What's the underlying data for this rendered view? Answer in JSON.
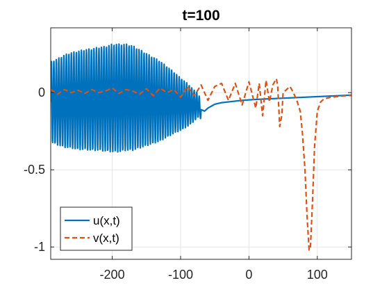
{
  "chart_data": {
    "type": "line",
    "title": "t=100",
    "xlabel": "",
    "ylabel": "",
    "xlim": [
      -290,
      150
    ],
    "ylim": [
      -1.08,
      0.42
    ],
    "xticks": [
      -200,
      -100,
      0,
      100
    ],
    "xtick_labels": [
      "-200",
      "-100",
      "0",
      "100"
    ],
    "yticks": [
      -1,
      -0.5,
      0
    ],
    "ytick_labels": [
      "-1",
      "-0.5",
      "0"
    ],
    "grid": true,
    "legend_position": "bottom-left",
    "colors": {
      "u": "#0072BD",
      "v": "#D95319",
      "grid": "#e6e6e6",
      "axes": "#262626"
    },
    "series": [
      {
        "name": "u(x,t)",
        "style": "solid",
        "x": [
          -290,
          -280,
          -270,
          -260,
          -250,
          -240,
          -230,
          -220,
          -210,
          -200,
          -190,
          -180,
          -170,
          -160,
          -150,
          -140,
          -130,
          -120,
          -110,
          -100,
          -90,
          -80,
          -75,
          -70,
          -65,
          -60,
          -50,
          -40,
          -30,
          -20,
          -10,
          0,
          10,
          20,
          30,
          40,
          50,
          60,
          70,
          80,
          90,
          100,
          110,
          120,
          130,
          140,
          150
        ],
        "values": [
          -0.06,
          -0.06,
          -0.055,
          -0.05,
          -0.05,
          -0.045,
          -0.045,
          -0.04,
          -0.04,
          -0.035,
          -0.035,
          -0.03,
          -0.035,
          -0.04,
          -0.045,
          -0.05,
          -0.055,
          -0.06,
          -0.065,
          -0.075,
          -0.08,
          -0.085,
          -0.08,
          -0.11,
          -0.12,
          -0.1,
          -0.075,
          -0.065,
          -0.06,
          -0.055,
          -0.05,
          -0.047,
          -0.044,
          -0.042,
          -0.04,
          -0.038,
          -0.036,
          -0.034,
          -0.032,
          -0.03,
          -0.028,
          -0.026,
          -0.024,
          -0.022,
          -0.02,
          -0.018,
          -0.016
        ],
        "oscillation": {
          "x_range": [
            -290,
            -70
          ],
          "envelope_x": [
            -290,
            -270,
            -250,
            -230,
            -210,
            -200,
            -190,
            -170,
            -150,
            -130,
            -110,
            -90,
            -70
          ],
          "envelope_amplitude": [
            0.26,
            0.3,
            0.32,
            0.33,
            0.34,
            0.35,
            0.35,
            0.34,
            0.3,
            0.26,
            0.2,
            0.14,
            0.06
          ],
          "cycles": 60
        }
      },
      {
        "name": "v(x,t)",
        "style": "dashed",
        "x": [
          -290,
          -280,
          -270,
          -260,
          -250,
          -240,
          -230,
          -220,
          -210,
          -200,
          -190,
          -180,
          -170,
          -160,
          -150,
          -140,
          -130,
          -120,
          -110,
          -100,
          -90,
          -80,
          -70,
          -60,
          -50,
          -40,
          -30,
          -20,
          -10,
          0,
          10,
          15,
          20,
          25,
          30,
          35,
          40,
          42,
          45,
          48,
          50,
          55,
          60,
          65,
          70,
          75,
          78,
          82,
          85,
          88,
          90,
          93,
          96,
          100,
          105,
          110,
          120,
          130,
          140,
          150
        ],
        "values": [
          0.02,
          -0.01,
          0.02,
          0.0,
          0.015,
          -0.005,
          0.02,
          0.0,
          0.01,
          0.03,
          -0.005,
          0.02,
          0.01,
          -0.01,
          0.025,
          -0.02,
          0.03,
          0.0,
          0.02,
          -0.03,
          0.04,
          -0.02,
          0.05,
          -0.05,
          0.04,
          0.06,
          -0.05,
          0.06,
          -0.08,
          0.07,
          -0.1,
          0.06,
          -0.15,
          0.08,
          -0.06,
          0.05,
          0.09,
          0.05,
          -0.22,
          -0.15,
          0.0,
          0.02,
          0.04,
          0.0,
          -0.05,
          -0.12,
          -0.25,
          -0.5,
          -0.8,
          -1.02,
          -1.0,
          -0.7,
          -0.35,
          -0.12,
          -0.06,
          -0.04,
          -0.03,
          -0.025,
          -0.02,
          -0.018
        ]
      }
    ]
  }
}
